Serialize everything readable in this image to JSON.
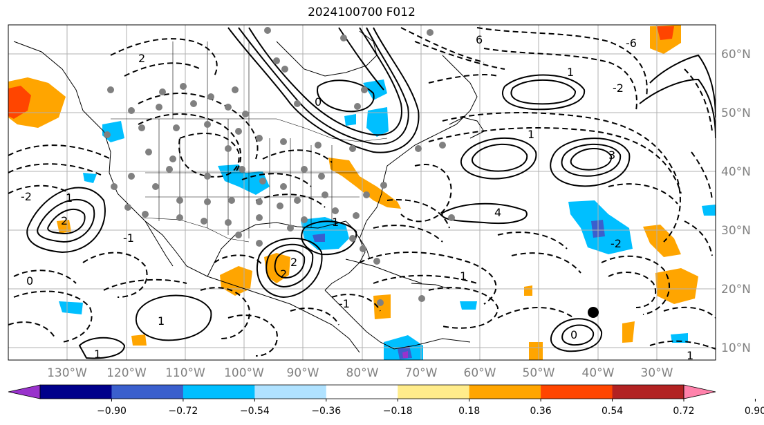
{
  "title": "2024100700 F012",
  "map": {
    "projection": "lat-lon",
    "extent": {
      "lon": [
        -137,
        -16
      ],
      "lat": [
        7,
        65
      ]
    },
    "lon_ticks": [
      "130°W",
      "120°W",
      "110°W",
      "100°W",
      "90°W",
      "80°W",
      "70°W",
      "60°W",
      "50°W",
      "40°W",
      "30°W"
    ],
    "lat_ticks": [
      "60°N",
      "50°N",
      "40°N",
      "30°N",
      "20°N",
      "10°N"
    ],
    "grid": true,
    "contour_labels": [
      "-2",
      "-1",
      "0",
      "1",
      "2",
      "3",
      "4",
      "6",
      "2",
      "-2",
      "-1",
      "0",
      "1",
      "-2",
      "2",
      "0",
      "-6"
    ]
  },
  "colorbar": {
    "ticks": [
      "−0.90",
      "−0.72",
      "−0.54",
      "−0.36",
      "−0.18",
      "0.18",
      "0.36",
      "0.54",
      "0.72",
      "0.90"
    ],
    "colors": [
      "#9932cc",
      "#00008b",
      "#3a5fcd",
      "#00bfff",
      "#b0e2ff",
      "#ffffff",
      "#ffec8b",
      "#ffa500",
      "#ff4500",
      "#b22222",
      "#ff82ab"
    ],
    "extend": "both"
  }
}
